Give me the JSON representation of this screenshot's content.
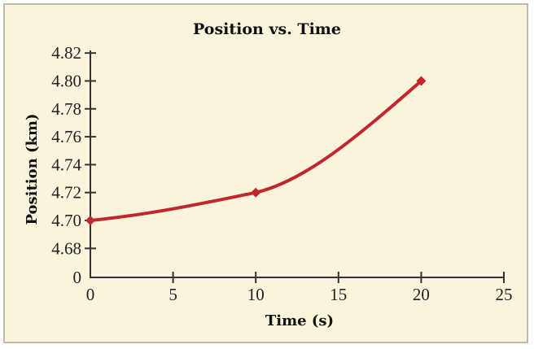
{
  "chart_data": {
    "type": "line",
    "title": "Position vs. Time",
    "xlabel": "Time (s)",
    "ylabel": "Position (km)",
    "x_ticks": [
      "0",
      "5",
      "10",
      "15",
      "20",
      "25"
    ],
    "y_ticks": [
      "0",
      "4.68",
      "4.70",
      "4.72",
      "4.74",
      "4.76",
      "4.78",
      "4.80",
      "4.82"
    ],
    "xlim": [
      0,
      25
    ],
    "ylim": [
      4.68,
      4.82
    ],
    "y_axis_break": "0 at origin, then 4.68 to 4.82",
    "grid": false,
    "legend": null,
    "series": [
      {
        "name": "Position",
        "color": "#c1272d",
        "marker": "diamond",
        "smooth": true,
        "x": [
          0,
          10,
          20
        ],
        "y": [
          4.7,
          4.72,
          4.8
        ]
      }
    ]
  },
  "colors": {
    "background": "#faf4dd",
    "border": "#c2b9a6",
    "line": "#c1272d",
    "axis": "#333333"
  }
}
